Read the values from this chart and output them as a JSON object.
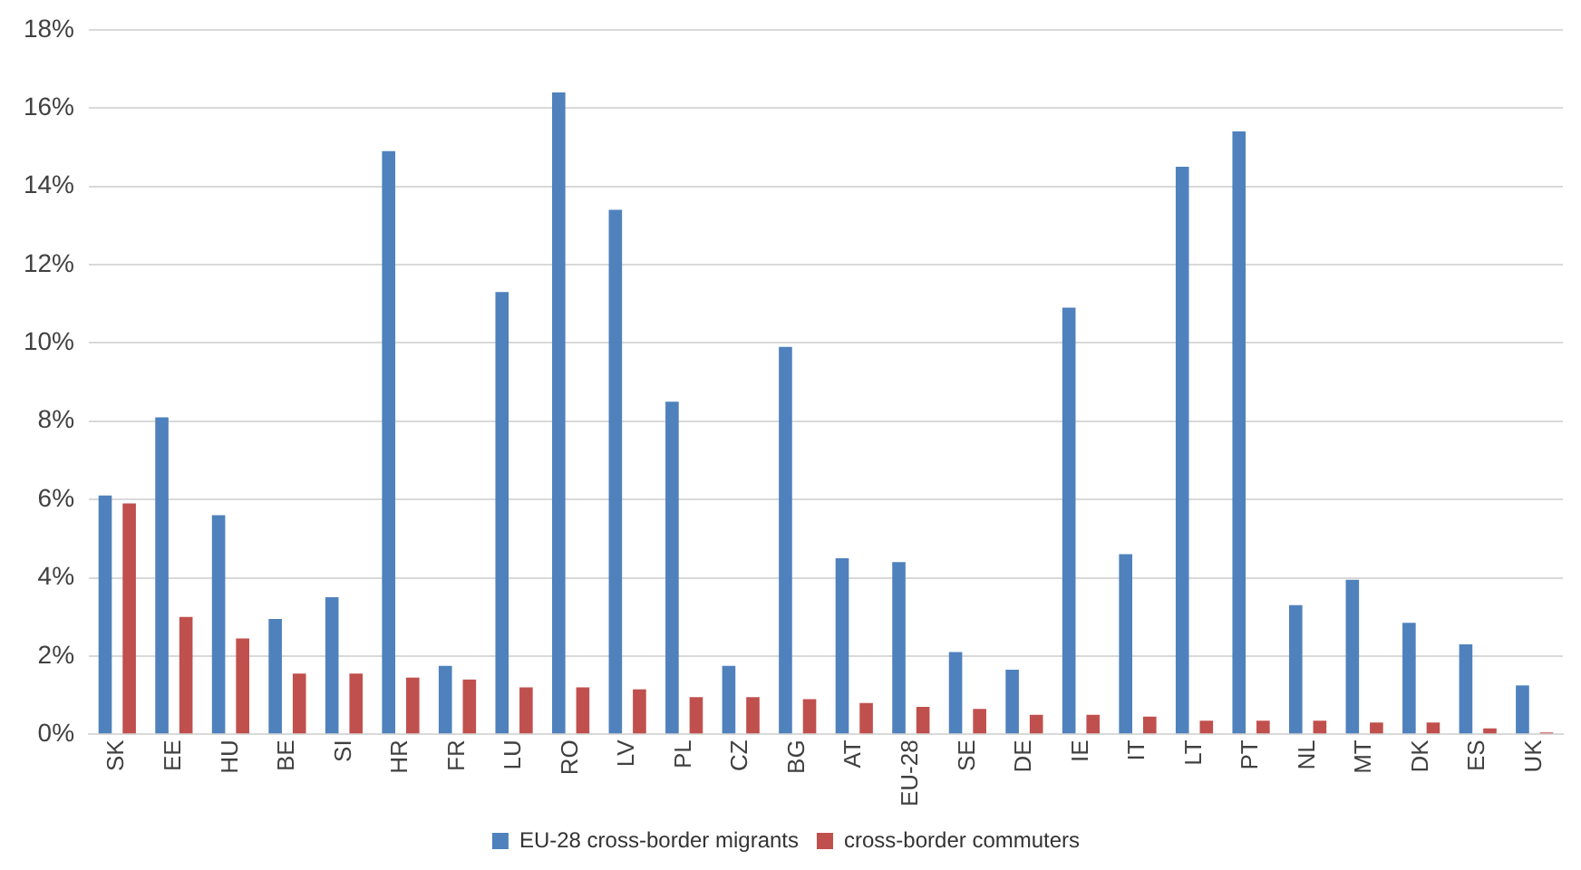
{
  "chart_data": {
    "type": "bar",
    "categories": [
      "SK",
      "EE",
      "HU",
      "BE",
      "SI",
      "HR",
      "FR",
      "LU",
      "RO",
      "LV",
      "PL",
      "CZ",
      "BG",
      "AT",
      "EU-28",
      "SE",
      "DE",
      "IE",
      "IT",
      "LT",
      "PT",
      "NL",
      "MT",
      "DK",
      "ES",
      "UK"
    ],
    "series": [
      {
        "name": "EU-28 cross-border migrants",
        "color": "#4f81bd",
        "values": [
          6.1,
          8.1,
          5.6,
          2.95,
          3.5,
          14.9,
          1.75,
          11.3,
          16.4,
          13.4,
          8.5,
          1.75,
          9.9,
          4.5,
          4.4,
          2.1,
          1.65,
          10.9,
          4.6,
          14.5,
          15.4,
          3.3,
          3.95,
          2.85,
          2.3,
          1.25
        ]
      },
      {
        "name": "cross-border commuters",
        "color": "#c0504d",
        "values": [
          5.9,
          3.0,
          2.45,
          1.55,
          1.55,
          1.45,
          1.4,
          1.2,
          1.2,
          1.15,
          0.95,
          0.95,
          0.9,
          0.8,
          0.7,
          0.65,
          0.5,
          0.5,
          0.45,
          0.35,
          0.35,
          0.35,
          0.3,
          0.3,
          0.15,
          0.05
        ]
      }
    ],
    "ylim": [
      0,
      18
    ],
    "yticks": [
      {
        "value": 0,
        "label": "0%"
      },
      {
        "value": 2,
        "label": "2%"
      },
      {
        "value": 4,
        "label": "4%"
      },
      {
        "value": 6,
        "label": "6%"
      },
      {
        "value": 8,
        "label": "8%"
      },
      {
        "value": 10,
        "label": "10%"
      },
      {
        "value": 12,
        "label": "12%"
      },
      {
        "value": 14,
        "label": "14%"
      },
      {
        "value": 16,
        "label": "16%"
      },
      {
        "value": 18,
        "label": "18%"
      }
    ],
    "grid": "y",
    "legend": "bottom"
  }
}
